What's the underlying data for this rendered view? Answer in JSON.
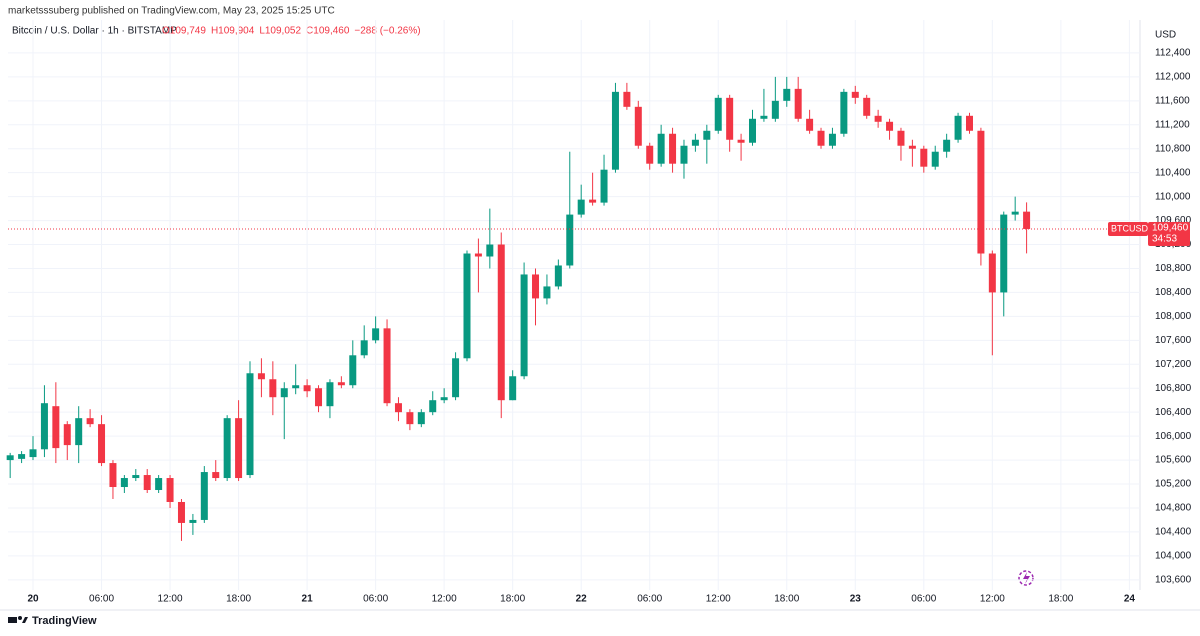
{
  "chart_data": {
    "type": "candlestick",
    "header": "marketsssuberg published on TradingView.com, May 23, 2025 15:25 UTC",
    "symbol": "Bitcoin / U.S. Dollar · 1h · BITSTAMP",
    "legend_values": [
      "O109,749",
      "H109,904",
      "L109,052",
      "C109,460",
      "−288 (−0.26%)"
    ],
    "y_axis_label": "USD",
    "ticker": "BTCUSD",
    "countdown": "34:53",
    "footer": "TradingView",
    "last_price": {
      "value": 109460,
      "label": "109,460"
    },
    "up_color": "#089981",
    "down_color": "#f23645",
    "grid": true,
    "x": [
      -2,
      -1,
      0,
      1,
      2,
      3,
      4,
      5,
      6,
      7,
      8,
      9,
      10,
      11,
      12,
      13,
      14,
      15,
      16,
      17,
      18,
      19,
      20,
      21,
      22,
      23,
      24,
      25,
      26,
      27,
      28,
      29,
      30,
      31,
      32,
      33,
      34,
      35,
      36,
      37,
      38,
      39,
      40,
      41,
      42,
      43,
      44,
      45,
      46,
      47,
      48,
      49,
      50,
      51,
      52,
      53,
      54,
      55,
      56,
      57,
      58,
      59,
      60,
      61,
      62,
      63,
      64,
      65,
      66,
      67,
      68,
      69,
      70,
      71,
      72,
      73,
      74,
      75,
      76,
      77,
      78,
      79,
      80,
      81,
      82,
      83,
      84,
      85,
      86,
      87
    ],
    "open": [
      105600,
      105620,
      105650,
      105780,
      106500,
      106200,
      105850,
      106300,
      106200,
      105550,
      105150,
      105300,
      105350,
      105100,
      105300,
      104900,
      104550,
      104600,
      105400,
      105300,
      106300,
      105350,
      107050,
      106950,
      106650,
      106800,
      106850,
      106800,
      106500,
      106900,
      106850,
      107350,
      107600,
      107800,
      106550,
      106400,
      106200,
      106400,
      106600,
      106650,
      107300,
      109050,
      109000,
      109200,
      106600,
      107000,
      108700,
      108300,
      108500,
      108850,
      109700,
      109950,
      109900,
      110450,
      111750,
      111500,
      110850,
      110550,
      111050,
      110550,
      110850,
      110950,
      111100,
      111650,
      110950,
      110900,
      111300,
      111300,
      111600,
      111800,
      111300,
      111100,
      110850,
      111050,
      111750,
      111650,
      111350,
      111250,
      111100,
      110850,
      110800,
      110500,
      110750,
      110950,
      111350,
      111100,
      109050,
      108400,
      109700,
      109749
    ],
    "high": [
      105720,
      105750,
      106000,
      106850,
      106900,
      106250,
      106500,
      106450,
      106350,
      105600,
      105350,
      105450,
      105450,
      105350,
      105350,
      104950,
      104700,
      105500,
      105600,
      106350,
      106600,
      107250,
      107300,
      107250,
      106900,
      107200,
      106950,
      106850,
      106950,
      107000,
      107600,
      107850,
      108000,
      107950,
      106650,
      106450,
      106450,
      106750,
      106800,
      107400,
      109100,
      109300,
      109800,
      109400,
      107100,
      108900,
      108800,
      108700,
      108950,
      110750,
      110200,
      110400,
      110700,
      111900,
      111900,
      111600,
      110900,
      111200,
      111150,
      110950,
      111050,
      111200,
      111700,
      111700,
      111050,
      111450,
      111800,
      112000,
      112000,
      112000,
      111450,
      111150,
      111150,
      111800,
      111850,
      111700,
      111450,
      111300,
      111150,
      110950,
      110850,
      110850,
      111050,
      111400,
      111400,
      111150,
      109100,
      109750,
      110000,
      109904
    ],
    "low": [
      105300,
      105550,
      105600,
      105650,
      105550,
      105600,
      105550,
      106150,
      105500,
      104950,
      105050,
      105250,
      105050,
      105050,
      104800,
      104250,
      104350,
      104550,
      105250,
      105250,
      105250,
      105300,
      106650,
      106350,
      105950,
      106700,
      106650,
      106400,
      106300,
      106800,
      106800,
      107300,
      107550,
      106500,
      106250,
      106100,
      106150,
      106350,
      106550,
      106600,
      107250,
      108400,
      108800,
      106300,
      106600,
      106950,
      107850,
      108200,
      108450,
      108800,
      109650,
      109850,
      109850,
      110400,
      111450,
      110800,
      110450,
      110500,
      110400,
      110300,
      110750,
      110550,
      111050,
      110750,
      110600,
      110850,
      111250,
      111250,
      111500,
      111250,
      111050,
      110800,
      110800,
      111000,
      111550,
      111300,
      111150,
      110950,
      110600,
      110500,
      110400,
      110450,
      110650,
      110900,
      111050,
      108850,
      107350,
      108000,
      109600,
      109052
    ],
    "close": [
      105680,
      105700,
      105780,
      106550,
      105800,
      105850,
      106300,
      106200,
      105550,
      105150,
      105300,
      105350,
      105100,
      105300,
      104900,
      104550,
      104600,
      105400,
      105300,
      106300,
      105300,
      107050,
      106950,
      106650,
      106800,
      106850,
      106750,
      106500,
      106900,
      106850,
      107350,
      107600,
      107800,
      106550,
      106400,
      106200,
      106400,
      106600,
      106650,
      107300,
      109050,
      109000,
      109200,
      106600,
      107000,
      108700,
      108300,
      108500,
      108850,
      109700,
      109950,
      109900,
      110450,
      111750,
      111500,
      110850,
      110550,
      111050,
      110550,
      110850,
      110950,
      111100,
      111650,
      110950,
      110900,
      111300,
      111350,
      111600,
      111800,
      111300,
      111100,
      110850,
      111050,
      111750,
      111650,
      111350,
      111250,
      111100,
      110850,
      110800,
      110500,
      110750,
      110950,
      111350,
      111100,
      109050,
      108400,
      109700,
      109749,
      109460
    ],
    "xlim": [
      -2.19,
      96.93
    ],
    "xticks": [
      {
        "value": 0,
        "label": "20"
      },
      {
        "value": 6,
        "label": "06:00"
      },
      {
        "value": 12,
        "label": "12:00"
      },
      {
        "value": 18,
        "label": "18:00"
      },
      {
        "value": 24,
        "label": "21"
      },
      {
        "value": 30,
        "label": "06:00"
      },
      {
        "value": 36,
        "label": "12:00"
      },
      {
        "value": 42,
        "label": "18:00"
      },
      {
        "value": 48,
        "label": "22"
      },
      {
        "value": 54,
        "label": "06:00"
      },
      {
        "value": 60,
        "label": "12:00"
      },
      {
        "value": 66,
        "label": "18:00"
      },
      {
        "value": 72,
        "label": "23"
      },
      {
        "value": 78,
        "label": "06:00"
      },
      {
        "value": 84,
        "label": "12:00"
      },
      {
        "value": 90,
        "label": "18:00"
      },
      {
        "value": 96,
        "label": "24"
      }
    ],
    "ylim": [
      103430,
      112950
    ],
    "yticks": [
      {
        "value": 103600,
        "label": "103,600"
      },
      {
        "value": 104000,
        "label": "104,000"
      },
      {
        "value": 104400,
        "label": "104,400"
      },
      {
        "value": 104800,
        "label": "104,800"
      },
      {
        "value": 105200,
        "label": "105,200"
      },
      {
        "value": 105600,
        "label": "105,600"
      },
      {
        "value": 106000,
        "label": "106,000"
      },
      {
        "value": 106400,
        "label": "106,400"
      },
      {
        "value": 106800,
        "label": "106,800"
      },
      {
        "value": 107200,
        "label": "107,200"
      },
      {
        "value": 107600,
        "label": "107,600"
      },
      {
        "value": 108000,
        "label": "108,000"
      },
      {
        "value": 108400,
        "label": "108,400"
      },
      {
        "value": 108800,
        "label": "108,800"
      },
      {
        "value": 109200,
        "label": "109,200"
      },
      {
        "value": 109600,
        "label": "109,600"
      },
      {
        "value": 110000,
        "label": "110,000"
      },
      {
        "value": 110400,
        "label": "110,400"
      },
      {
        "value": 110800,
        "label": "110,800"
      },
      {
        "value": 111200,
        "label": "111,200"
      },
      {
        "value": 111600,
        "label": "111,600"
      },
      {
        "value": 112000,
        "label": "112,000"
      },
      {
        "value": 112400,
        "label": "112,400"
      }
    ]
  }
}
